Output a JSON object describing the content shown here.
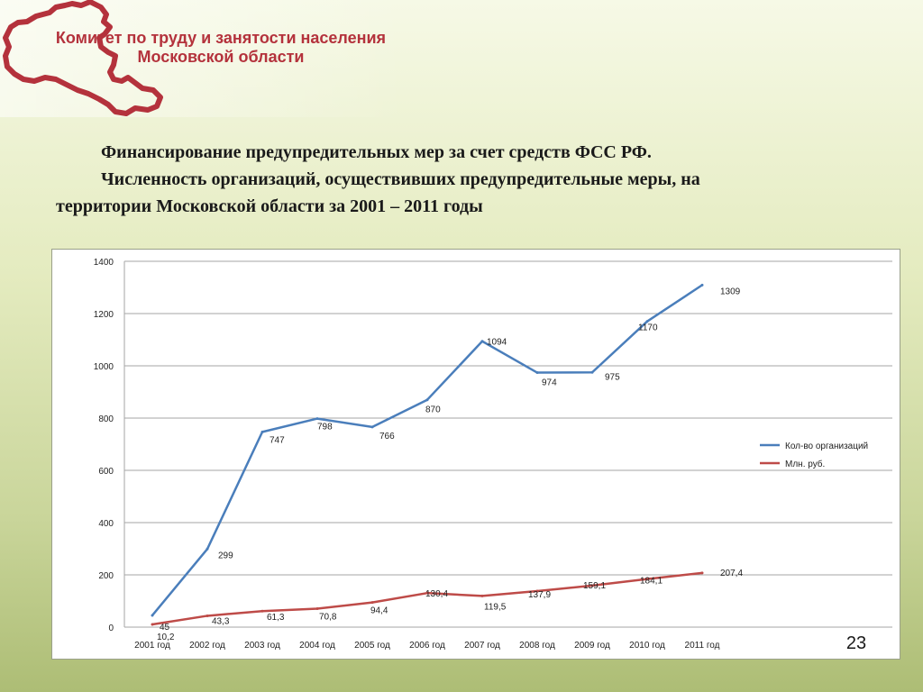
{
  "header": {
    "org_line1": "Комитет по труду и занятости населения",
    "org_line2": "Московской области",
    "logo_icon": "moscow-region-map-icon",
    "accent_color": "#b4323c"
  },
  "title": {
    "line1": "Финансирование предупредительных мер за счет средств ФСС РФ.",
    "line2": "Численность организаций, осуществивших предупредительные меры, на",
    "line3": "территории Московской области за 2001 – 2011 годы"
  },
  "page_number": "23",
  "chart_data": {
    "type": "line",
    "categories": [
      "2001 год",
      "2002 год",
      "2003 год",
      "2004 год",
      "2005 год",
      "2006 год",
      "2007 год",
      "2008 год",
      "2009 год",
      "2010 год",
      "2011 год"
    ],
    "ylim": [
      0,
      1400
    ],
    "yticks": [
      "0",
      "200",
      "400",
      "600",
      "800",
      "1000",
      "1200",
      "1400"
    ],
    "grid": true,
    "legend_position": "right",
    "series": [
      {
        "name": "Кол-во организаций",
        "color": "#4a7ebb",
        "values": [
          45,
          299,
          747,
          798,
          766,
          870,
          1094,
          974,
          975,
          1170,
          1309
        ],
        "labels": [
          "45",
          "299",
          "747",
          "798",
          "766",
          "870",
          "1094",
          "974",
          "975",
          "1170",
          "1309"
        ]
      },
      {
        "name": "Млн. руб.",
        "color": "#be4b48",
        "values": [
          10.2,
          43.3,
          61.3,
          70.8,
          94.4,
          130.4,
          119.5,
          137.9,
          159.1,
          184.1,
          207.4
        ],
        "labels": [
          "10,2",
          "43,3",
          "61,3",
          "70,8",
          "94,4",
          "130,4",
          "119,5",
          "137,9",
          "159,1",
          "184,1",
          "207,4"
        ]
      }
    ]
  }
}
